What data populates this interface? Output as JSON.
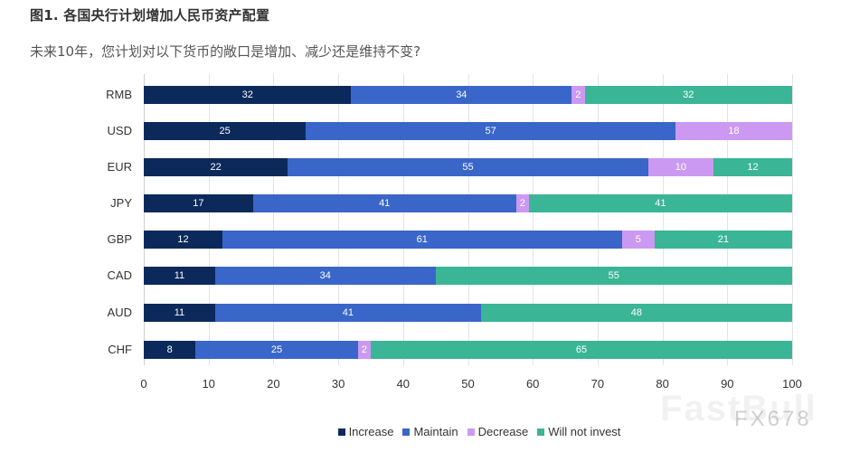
{
  "header": {
    "title": "图1. 各国央行计划增加人民币资产配置",
    "subtitle": "未来10年，您计划对以下货币的敞口是增加、减少还是维持不变?"
  },
  "colors": {
    "Increase": "#0b2a5b",
    "Maintain": "#3a66c9",
    "Decrease": "#cc99f2",
    "Will not invest": "#3ab596"
  },
  "watermark": {
    "text1": "FastBull",
    "text2": "FX678"
  },
  "chart_data": {
    "type": "bar",
    "orientation": "horizontal",
    "stacked": true,
    "title": "图1. 各国央行计划增加人民币资产配置",
    "subtitle": "未来10年，您计划对以下货币的敞口是增加、减少还是维持不变?",
    "xlabel": "",
    "ylabel": "",
    "xlim": [
      0,
      100
    ],
    "xticks": [
      0,
      10,
      20,
      30,
      40,
      50,
      60,
      70,
      80,
      90,
      100
    ],
    "grid": true,
    "legend_position": "bottom",
    "categories": [
      "RMB",
      "USD",
      "EUR",
      "JPY",
      "GBP",
      "CAD",
      "AUD",
      "CHF"
    ],
    "series": [
      {
        "name": "Increase",
        "color": "#0b2a5b",
        "values": [
          32,
          25,
          22,
          17,
          12,
          11,
          11,
          8
        ]
      },
      {
        "name": "Maintain",
        "color": "#3a66c9",
        "values": [
          34,
          57,
          55,
          41,
          61,
          34,
          41,
          25
        ]
      },
      {
        "name": "Decrease",
        "color": "#cc99f2",
        "values": [
          2,
          18,
          10,
          2,
          5,
          0,
          0,
          2
        ]
      },
      {
        "name": "Will not invest",
        "color": "#3ab596",
        "values": [
          32,
          0,
          12,
          41,
          21,
          55,
          48,
          65
        ]
      }
    ]
  }
}
